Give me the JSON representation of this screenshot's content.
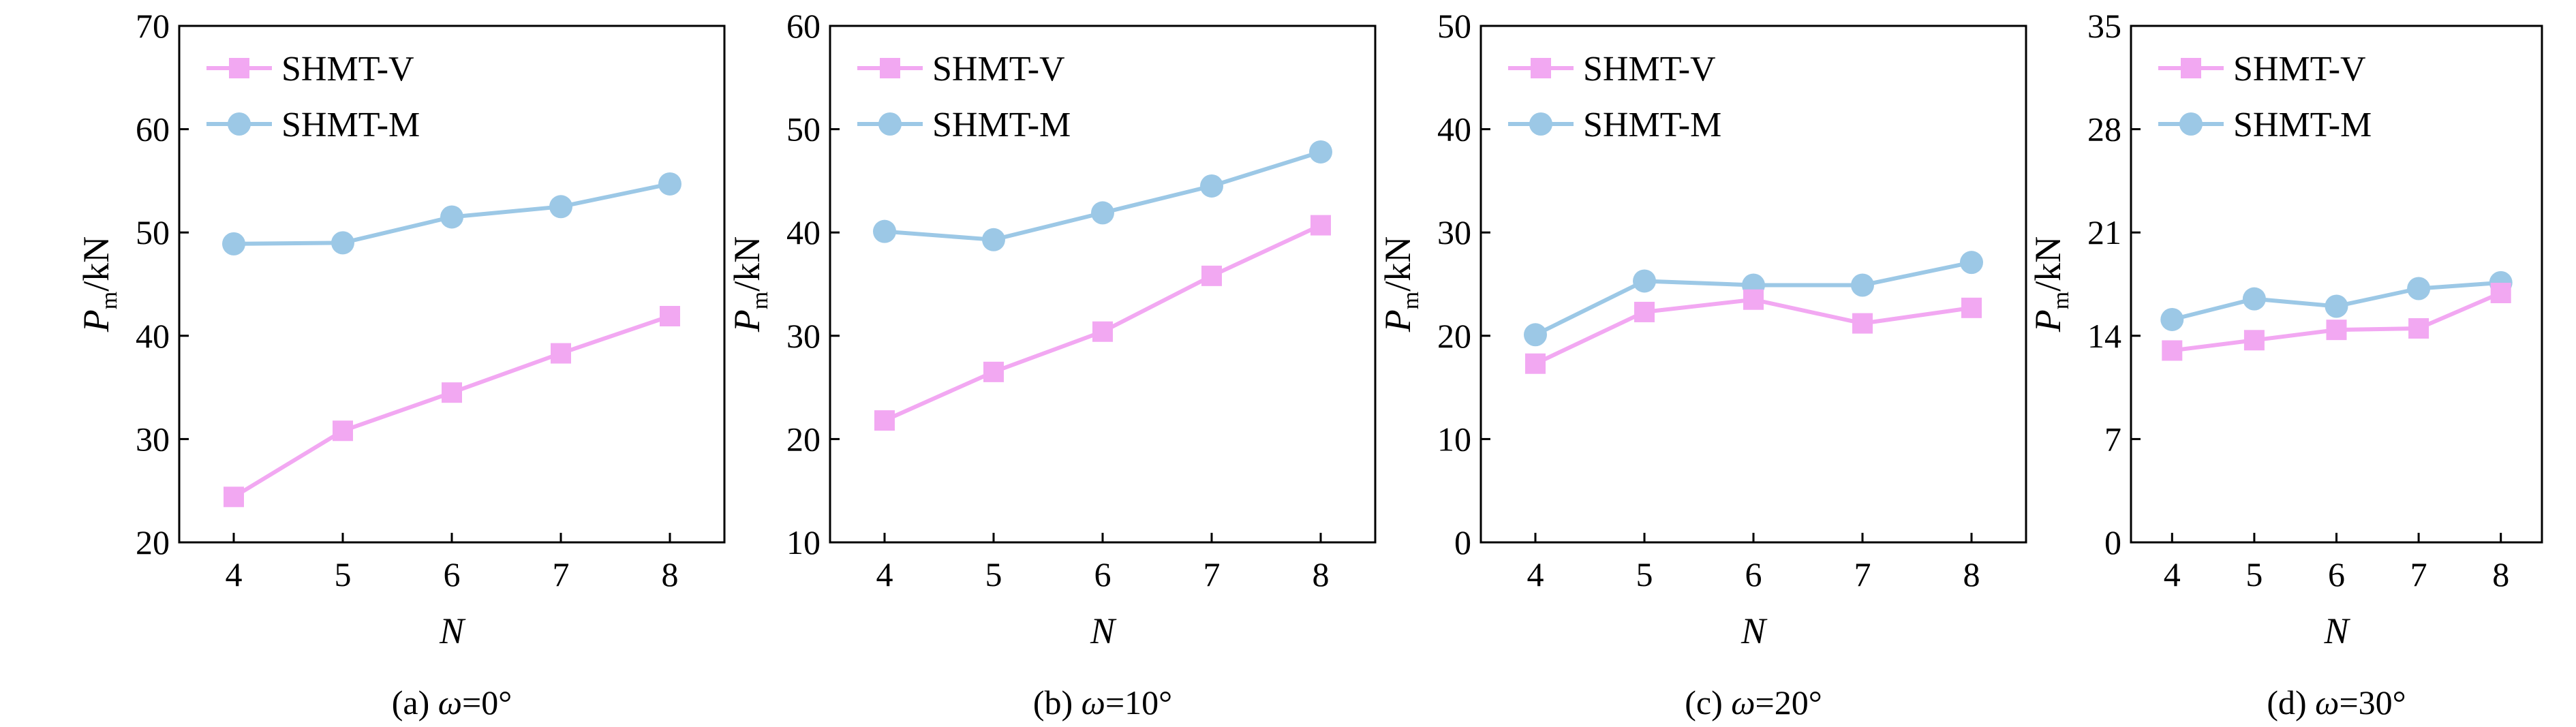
{
  "chart_data": [
    {
      "type": "line",
      "caption": "(a) ω=0°",
      "caption_prefix": "(a) ",
      "caption_symbol": "ω",
      "caption_suffix": "=0°",
      "xlabel": "N",
      "ylabel_main": "P",
      "ylabel_sub": "m",
      "ylabel_unit": "/kN",
      "x": [
        4,
        5,
        6,
        7,
        8
      ],
      "ylim": [
        20,
        70
      ],
      "yticks": [
        20,
        30,
        40,
        50,
        60,
        70
      ],
      "legend_position": "top-left",
      "grid": false,
      "series": [
        {
          "name": "SHMT-V",
          "color": "#f2a8f2",
          "marker": "square",
          "values": [
            24.4,
            30.8,
            34.5,
            38.3,
            41.9
          ]
        },
        {
          "name": "SHMT-M",
          "color": "#9cc8e6",
          "marker": "circle",
          "values": [
            48.9,
            49.0,
            51.5,
            52.5,
            54.7
          ]
        }
      ]
    },
    {
      "type": "line",
      "caption": "(b) ω=10°",
      "caption_prefix": "(b) ",
      "caption_symbol": "ω",
      "caption_suffix": "=10°",
      "xlabel": "N",
      "ylabel_main": "P",
      "ylabel_sub": "m",
      "ylabel_unit": "/kN",
      "x": [
        4,
        5,
        6,
        7,
        8
      ],
      "ylim": [
        10,
        60
      ],
      "yticks": [
        10,
        20,
        30,
        40,
        50,
        60
      ],
      "legend_position": "top-left",
      "grid": false,
      "series": [
        {
          "name": "SHMT-V",
          "color": "#f2a8f2",
          "marker": "square",
          "values": [
            21.8,
            26.5,
            30.4,
            35.8,
            40.7
          ]
        },
        {
          "name": "SHMT-M",
          "color": "#9cc8e6",
          "marker": "circle",
          "values": [
            40.1,
            39.3,
            41.9,
            44.5,
            47.8
          ]
        }
      ]
    },
    {
      "type": "line",
      "caption": "(c) ω=20°",
      "caption_prefix": "(c) ",
      "caption_symbol": "ω",
      "caption_suffix": "=20°",
      "xlabel": "N",
      "ylabel_main": "P",
      "ylabel_sub": "m",
      "ylabel_unit": "/kN",
      "x": [
        4,
        5,
        6,
        7,
        8
      ],
      "ylim": [
        0,
        50
      ],
      "yticks": [
        0,
        10,
        20,
        30,
        40,
        50
      ],
      "legend_position": "top-left",
      "grid": false,
      "series": [
        {
          "name": "SHMT-V",
          "color": "#f2a8f2",
          "marker": "square",
          "values": [
            17.3,
            22.3,
            23.5,
            21.2,
            22.7
          ]
        },
        {
          "name": "SHMT-M",
          "color": "#9cc8e6",
          "marker": "circle",
          "values": [
            20.1,
            25.3,
            24.9,
            24.9,
            27.1
          ]
        }
      ]
    },
    {
      "type": "line",
      "caption": "(d) ω=30°",
      "caption_prefix": "(d) ",
      "caption_symbol": "ω",
      "caption_suffix": "=30°",
      "xlabel": "N",
      "ylabel_main": "P",
      "ylabel_sub": "m",
      "ylabel_unit": "/kN",
      "x": [
        4,
        5,
        6,
        7,
        8
      ],
      "ylim": [
        0,
        35
      ],
      "yticks": [
        0,
        7,
        14,
        21,
        28,
        35
      ],
      "legend_position": "top-left",
      "grid": false,
      "series": [
        {
          "name": "SHMT-V",
          "color": "#f2a8f2",
          "marker": "square",
          "values": [
            13.0,
            13.7,
            14.4,
            14.5,
            16.9
          ]
        },
        {
          "name": "SHMT-M",
          "color": "#9cc8e6",
          "marker": "circle",
          "values": [
            15.1,
            16.5,
            16.0,
            17.2,
            17.6
          ]
        }
      ]
    }
  ]
}
